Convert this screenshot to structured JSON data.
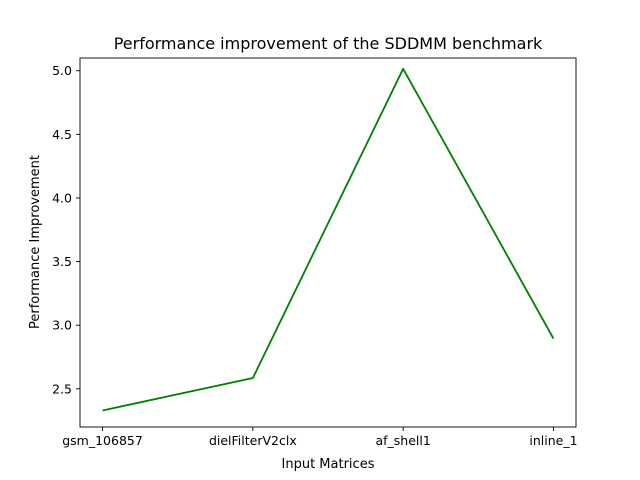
{
  "chart_data": {
    "type": "line",
    "title": "Performance improvement of the SDDMM benchmark",
    "xlabel": "Input Matrices",
    "ylabel": "Performance Improvement",
    "categories": [
      "gsm_106857",
      "dielFilterV2clx",
      "af_shell1",
      "inline_1"
    ],
    "series": [
      {
        "values": [
          2.33,
          2.585,
          5.015,
          2.895
        ],
        "color": "#008000"
      }
    ],
    "ylim": [
      2.2,
      5.1
    ],
    "yticks": [
      2.5,
      3.0,
      3.5,
      4.0,
      4.5,
      5.0
    ],
    "ytick_labels": [
      "2.5",
      "3.0",
      "3.5",
      "4.0",
      "4.5",
      "5.0"
    ],
    "grid": false,
    "legend": "none"
  }
}
